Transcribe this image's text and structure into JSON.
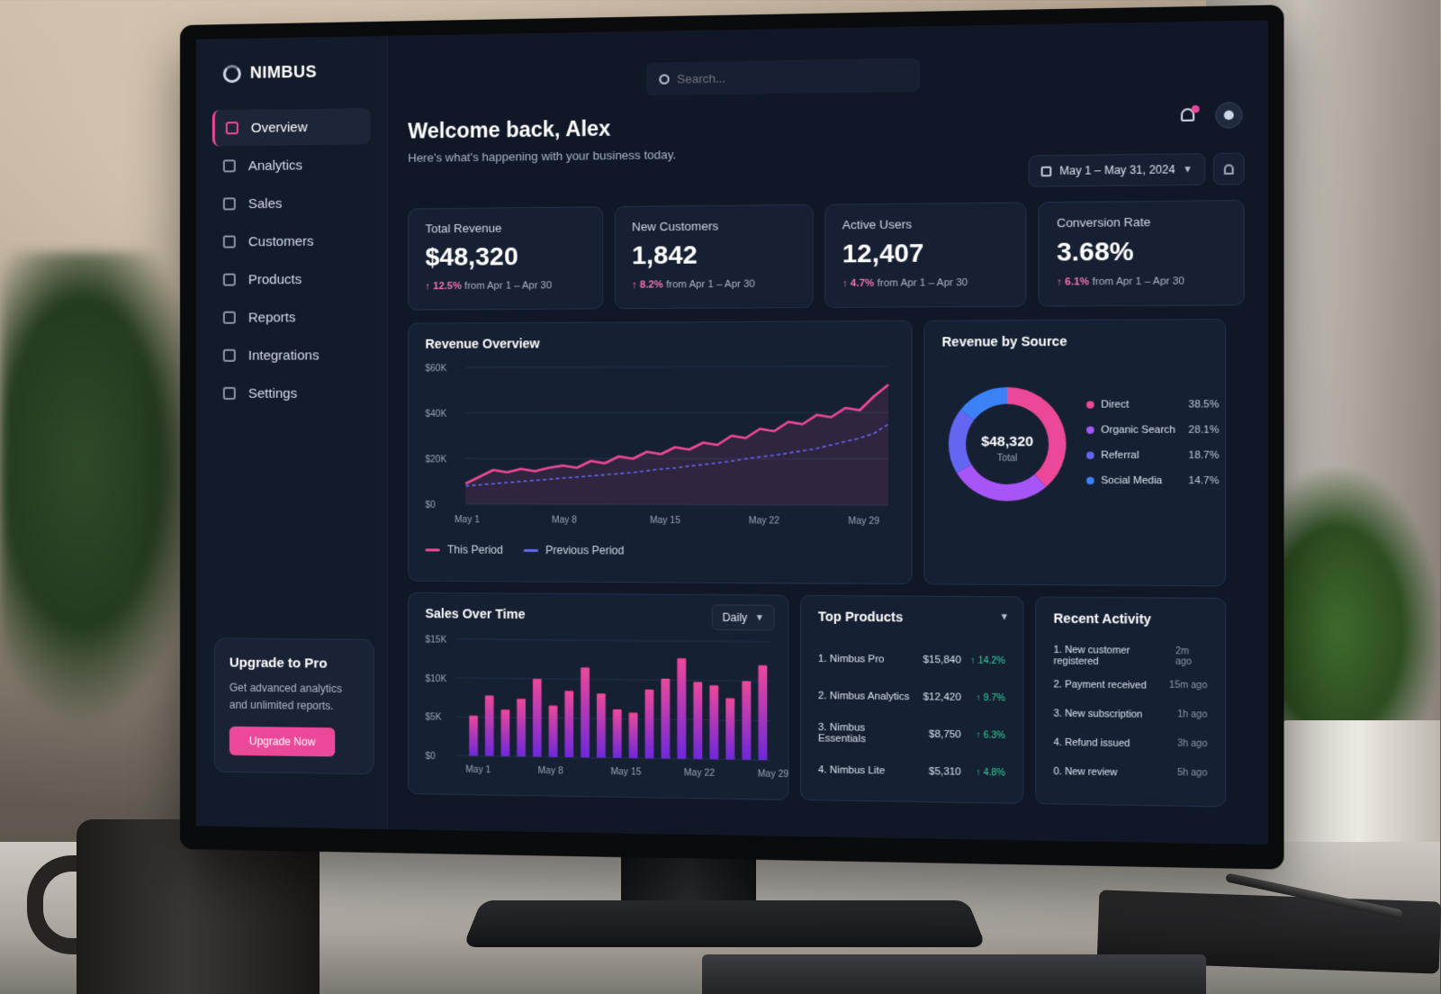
{
  "brand": {
    "name": "NIMBUS"
  },
  "sidebar": {
    "items": [
      {
        "label": "Overview",
        "active": true
      },
      {
        "label": "Analytics"
      },
      {
        "label": "Sales"
      },
      {
        "label": "Customers"
      },
      {
        "label": "Products"
      },
      {
        "label": "Reports"
      },
      {
        "label": "Integrations"
      },
      {
        "label": "Settings"
      }
    ],
    "upgrade": {
      "title": "Upgrade to Pro",
      "text": "Get advanced analytics and unlimited reports.",
      "button": "Upgrade Now"
    }
  },
  "search": {
    "placeholder": "Search..."
  },
  "header": {
    "title": "Welcome back, Alex",
    "subtitle": "Here's what's happening with your business today.",
    "date_range": "May 1 – May 31, 2024"
  },
  "kpis": [
    {
      "label": "Total Revenue",
      "value": "$48,320",
      "delta": "12.5%",
      "period": "from Apr 1 – Apr 30"
    },
    {
      "label": "New Customers",
      "value": "1,842",
      "delta": "8.2%",
      "period": "from Apr 1 – Apr 30"
    },
    {
      "label": "Active Users",
      "value": "12,407",
      "delta": "4.7%",
      "period": "from Apr 1 – Apr 30"
    },
    {
      "label": "Conversion Rate",
      "value": "3.68%",
      "delta": "6.1%",
      "period": "from Apr 1 – Apr 30"
    }
  ],
  "revenue_overview": {
    "title": "Revenue Overview",
    "legend_this": "This Period",
    "legend_prev": "Previous Period"
  },
  "revenue_by_source": {
    "title": "Revenue by Source",
    "total_value": "$48,320",
    "total_label": "Total",
    "sources": [
      {
        "name": "Direct",
        "pct": "38.5%",
        "color": "#ec4899"
      },
      {
        "name": "Organic Search",
        "pct": "28.1%",
        "color": "#a855f7"
      },
      {
        "name": "Referral",
        "pct": "18.7%",
        "color": "#6366f1"
      },
      {
        "name": "Social Media",
        "pct": "14.7%",
        "color": "#3b82f6"
      }
    ]
  },
  "sales_over_time": {
    "title": "Sales Over Time",
    "period_select": "Daily"
  },
  "top_products": {
    "title": "Top Products",
    "items": [
      {
        "rank": "1.",
        "name": "Nimbus Pro",
        "price": "$15,840",
        "change": "14.2%"
      },
      {
        "rank": "2.",
        "name": "Nimbus Analytics",
        "price": "$12,420",
        "change": "9.7%"
      },
      {
        "rank": "3.",
        "name": "Nimbus Essentials",
        "price": "$8,750",
        "change": "6.3%"
      },
      {
        "rank": "4.",
        "name": "Nimbus Lite",
        "price": "$5,310",
        "change": "4.8%"
      }
    ]
  },
  "recent_activity": {
    "title": "Recent Activity",
    "items": [
      {
        "rank": "1.",
        "text": "New customer registered",
        "time": "2m ago"
      },
      {
        "rank": "2.",
        "text": "Payment received",
        "time": "15m ago"
      },
      {
        "rank": "3.",
        "text": "New subscription",
        "time": "1h ago"
      },
      {
        "rank": "4.",
        "text": "Refund issued",
        "time": "3h ago"
      },
      {
        "rank": "0.",
        "text": "New review",
        "time": "5h ago"
      }
    ]
  },
  "colors": {
    "accent": "#ec4899",
    "previous": "#6366f1",
    "positive": "#34d399"
  },
  "chart_data": [
    {
      "type": "line",
      "ylim": [
        0,
        60000
      ],
      "y_ticks": [
        "$60K",
        "$40K",
        "$20K",
        "$0"
      ],
      "x_ticks": [
        "May 1",
        "May 8",
        "May 15",
        "May 22",
        "May 29"
      ],
      "x": [
        1,
        2,
        3,
        4,
        5,
        6,
        7,
        8,
        9,
        10,
        11,
        12,
        13,
        14,
        15,
        16,
        17,
        18,
        19,
        20,
        21,
        22,
        23,
        24,
        25,
        26,
        27,
        28,
        29,
        30,
        31
      ],
      "series": [
        {
          "name": "This Period",
          "color": "#ec4899",
          "values": [
            9000,
            12000,
            15000,
            14000,
            15500,
            14500,
            16000,
            17000,
            16000,
            19000,
            18000,
            21000,
            20000,
            23000,
            22000,
            25000,
            24000,
            27000,
            26000,
            30000,
            29000,
            33000,
            32000,
            36000,
            35000,
            39000,
            38000,
            42000,
            41000,
            47000,
            52000
          ]
        },
        {
          "name": "Previous Period",
          "color": "#6366f1",
          "values": [
            8000,
            8500,
            9000,
            9500,
            10000,
            10500,
            11000,
            11500,
            12000,
            12500,
            13000,
            13500,
            14000,
            14800,
            15500,
            16000,
            16800,
            17500,
            18200,
            19000,
            20000,
            20800,
            21500,
            22500,
            23500,
            24500,
            26000,
            27500,
            29000,
            31000,
            35000
          ]
        }
      ]
    },
    {
      "type": "pie",
      "categories": [
        "Direct",
        "Organic Search",
        "Referral",
        "Social Media"
      ],
      "values": [
        38.5,
        28.1,
        18.7,
        14.7
      ]
    },
    {
      "type": "bar",
      "ylim": [
        0,
        15000
      ],
      "y_ticks": [
        "$15K",
        "$10K",
        "$5K",
        "$0"
      ],
      "x_ticks": [
        "May 1",
        "May 8",
        "May 15",
        "May 22",
        "May 29"
      ],
      "values": [
        5200,
        7800,
        6000,
        7400,
        10000,
        6600,
        8500,
        11500,
        8200,
        6200,
        5800,
        8800,
        10200,
        12800,
        9800,
        9400,
        7800,
        10000,
        12000
      ]
    }
  ]
}
